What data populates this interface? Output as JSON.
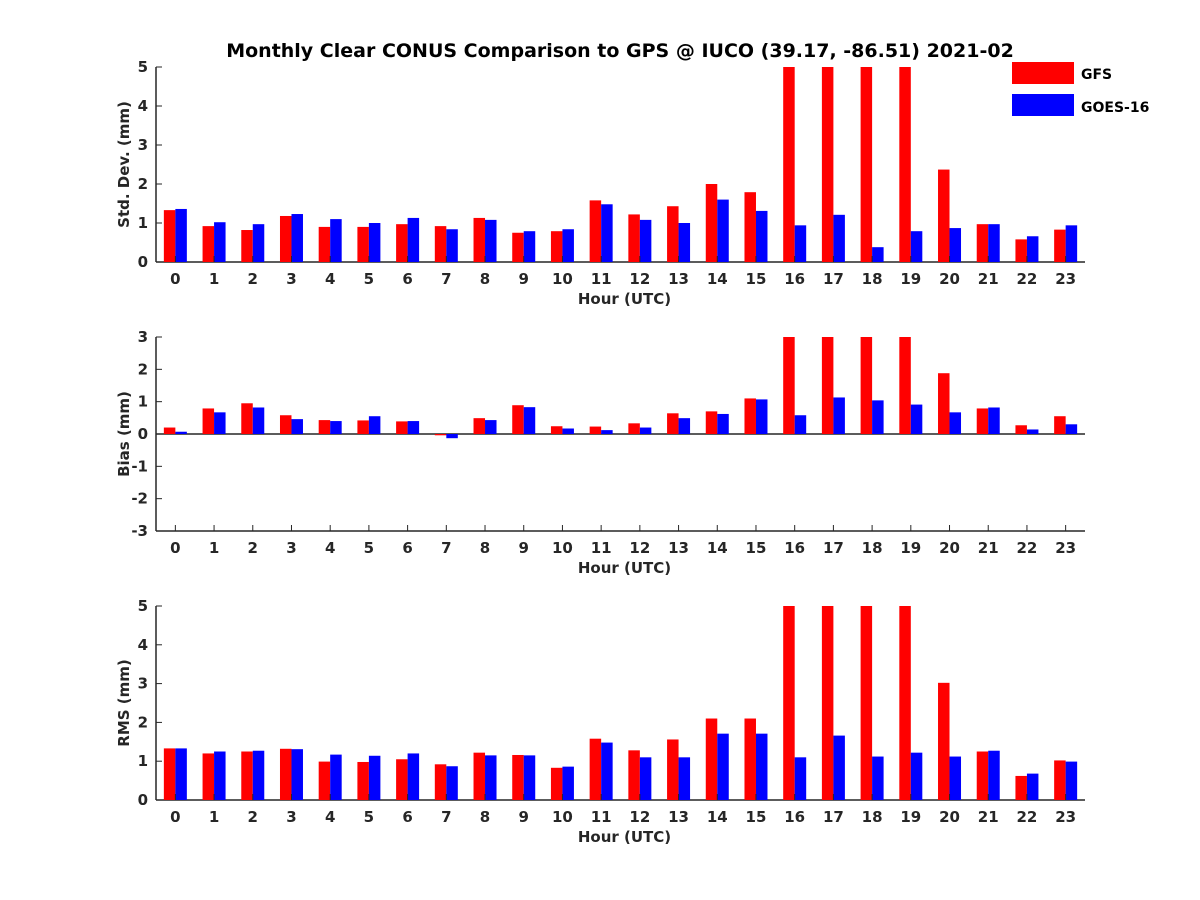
{
  "chart_data": [
    {
      "type": "bar",
      "title": "Monthly Clear CONUS Comparison to GPS @ IUCO (39.17, -86.51) 2021-02",
      "xlabel": "Hour (UTC)",
      "ylabel": "Std. Dev. (mm)",
      "ylim": [
        0,
        5
      ],
      "yticks": [
        "0",
        "1",
        "2",
        "3",
        "4",
        "5"
      ],
      "categories": [
        "0",
        "1",
        "2",
        "3",
        "4",
        "5",
        "6",
        "7",
        "8",
        "9",
        "10",
        "11",
        "12",
        "13",
        "14",
        "15",
        "16",
        "17",
        "18",
        "19",
        "20",
        "21",
        "22",
        "23"
      ],
      "series": [
        {
          "name": "GFS",
          "color": "#ff0000",
          "values": [
            1.33,
            0.92,
            0.82,
            1.18,
            0.9,
            0.9,
            0.97,
            0.92,
            1.13,
            0.75,
            0.79,
            1.58,
            1.22,
            1.43,
            2.0,
            1.79,
            5.0,
            5.0,
            5.0,
            5.0,
            2.37,
            0.97,
            0.58,
            0.83
          ]
        },
        {
          "name": "GOES-16",
          "color": "#0000ff",
          "values": [
            1.36,
            1.02,
            0.97,
            1.23,
            1.1,
            1.0,
            1.13,
            0.84,
            1.08,
            0.79,
            0.84,
            1.48,
            1.08,
            1.0,
            1.6,
            1.31,
            0.94,
            1.21,
            0.38,
            0.79,
            0.87,
            0.97,
            0.66,
            0.94
          ]
        }
      ]
    },
    {
      "type": "bar",
      "xlabel": "Hour (UTC)",
      "ylabel": "Bias (mm)",
      "ylim": [
        -3,
        3
      ],
      "yticks": [
        "-3",
        "-2",
        "-1",
        "0",
        "1",
        "2",
        "3"
      ],
      "categories": [
        "0",
        "1",
        "2",
        "3",
        "4",
        "5",
        "6",
        "7",
        "8",
        "9",
        "10",
        "11",
        "12",
        "13",
        "14",
        "15",
        "16",
        "17",
        "18",
        "19",
        "20",
        "21",
        "22",
        "23"
      ],
      "series": [
        {
          "name": "GFS",
          "color": "#ff0000",
          "values": [
            0.2,
            0.79,
            0.95,
            0.58,
            0.43,
            0.42,
            0.39,
            -0.04,
            0.49,
            0.89,
            0.24,
            0.23,
            0.33,
            0.64,
            0.7,
            1.1,
            3.0,
            3.0,
            3.0,
            3.0,
            1.88,
            0.79,
            0.27,
            0.55
          ]
        },
        {
          "name": "GOES-16",
          "color": "#0000ff",
          "values": [
            0.07,
            0.67,
            0.82,
            0.46,
            0.4,
            0.55,
            0.4,
            -0.13,
            0.43,
            0.83,
            0.17,
            0.12,
            0.2,
            0.49,
            0.62,
            1.07,
            0.58,
            1.13,
            1.04,
            0.91,
            0.67,
            0.82,
            0.14,
            0.3
          ]
        }
      ]
    },
    {
      "type": "bar",
      "xlabel": "Hour (UTC)",
      "ylabel": "RMS (mm)",
      "ylim": [
        0,
        5
      ],
      "yticks": [
        "0",
        "1",
        "2",
        "3",
        "4",
        "5"
      ],
      "categories": [
        "0",
        "1",
        "2",
        "3",
        "4",
        "5",
        "6",
        "7",
        "8",
        "9",
        "10",
        "11",
        "12",
        "13",
        "14",
        "15",
        "16",
        "17",
        "18",
        "19",
        "20",
        "21",
        "22",
        "23"
      ],
      "series": [
        {
          "name": "GFS",
          "color": "#ff0000",
          "values": [
            1.33,
            1.2,
            1.25,
            1.32,
            0.99,
            0.98,
            1.05,
            0.92,
            1.22,
            1.16,
            0.83,
            1.58,
            1.28,
            1.56,
            2.1,
            2.1,
            5.0,
            5.0,
            5.0,
            5.0,
            3.02,
            1.25,
            0.62,
            1.02
          ]
        },
        {
          "name": "GOES-16",
          "color": "#0000ff",
          "values": [
            1.33,
            1.25,
            1.27,
            1.31,
            1.17,
            1.14,
            1.2,
            0.87,
            1.15,
            1.15,
            0.86,
            1.48,
            1.1,
            1.1,
            1.71,
            1.71,
            1.1,
            1.66,
            1.12,
            1.22,
            1.12,
            1.27,
            0.68,
            0.99
          ]
        }
      ]
    }
  ],
  "legend": [
    {
      "label": "GFS",
      "color": "#ff0000"
    },
    {
      "label": "GOES-16",
      "color": "#0000ff"
    }
  ]
}
